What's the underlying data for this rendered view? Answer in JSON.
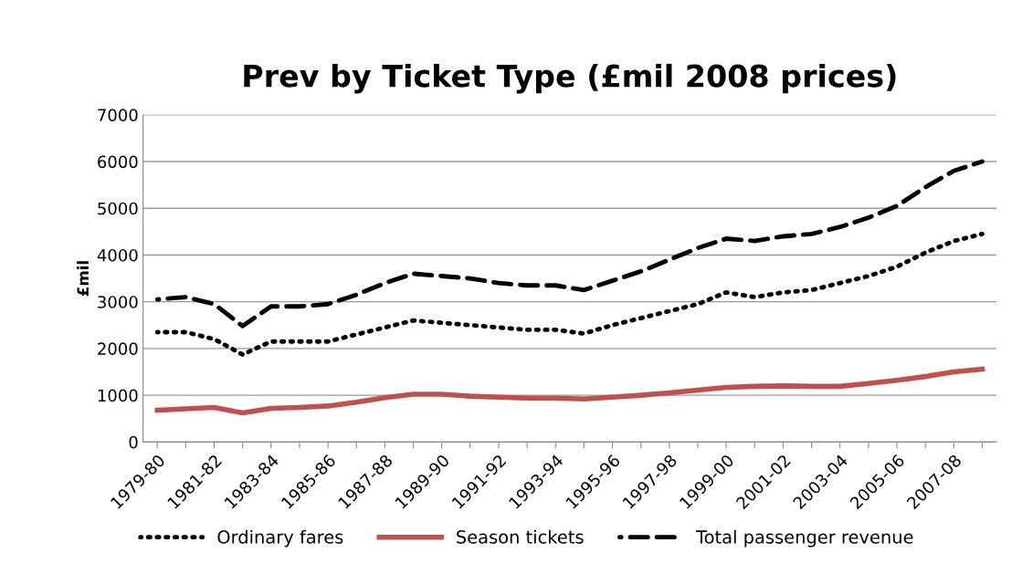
{
  "chart_data": {
    "type": "line",
    "title": "Prev by Ticket Type (£mil 2008 prices)",
    "ylabel": "£mil",
    "categories": [
      "1979-80",
      null,
      "1981-82",
      null,
      "1983-84",
      null,
      "1985-86",
      null,
      "1987-88",
      null,
      "1989-90",
      null,
      "1991-92",
      null,
      "1993-94",
      null,
      "1995-96",
      null,
      "1997-98",
      null,
      "1999-00",
      null,
      "2001-02",
      null,
      "2003-04",
      null,
      "2005-06",
      null,
      "2007-08",
      null
    ],
    "series": [
      {
        "name": "Ordinary fares",
        "color": "#000000",
        "line_style": "dotted",
        "values": [
          2350,
          2350,
          2200,
          1870,
          2150,
          2150,
          2150,
          2300,
          2450,
          2600,
          2550,
          2500,
          2450,
          2400,
          2400,
          2320,
          2500,
          2650,
          2800,
          2950,
          3200,
          3100,
          3200,
          3250,
          3400,
          3550,
          3750,
          4050,
          4300,
          4450
        ]
      },
      {
        "name": "Season tickets",
        "color": "#c0504d",
        "line_style": "solid",
        "values": [
          680,
          710,
          740,
          620,
          720,
          740,
          770,
          850,
          950,
          1020,
          1020,
          980,
          960,
          940,
          940,
          920,
          960,
          1000,
          1050,
          1110,
          1170,
          1190,
          1200,
          1190,
          1190,
          1250,
          1320,
          1400,
          1500,
          1560
        ]
      },
      {
        "name": "Total passenger revenue",
        "color": "#000000",
        "line_style": "dashed",
        "values": [
          3050,
          3100,
          2950,
          2480,
          2900,
          2900,
          2950,
          3150,
          3400,
          3600,
          3550,
          3500,
          3400,
          3350,
          3350,
          3250,
          3450,
          3650,
          3900,
          4150,
          4350,
          4300,
          4400,
          4450,
          4600,
          4800,
          5050,
          5450,
          5800,
          6000
        ]
      }
    ],
    "ylim": [
      0,
      7000
    ],
    "yticks": [
      0,
      1000,
      2000,
      3000,
      4000,
      5000,
      6000,
      7000
    ],
    "grid": "y",
    "legend": "bottom"
  }
}
